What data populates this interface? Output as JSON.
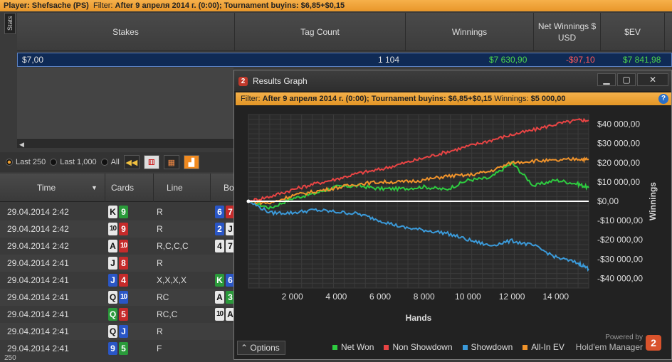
{
  "topbar": {
    "player_label": "Player:",
    "player": "Shefsache (PS)",
    "filter_label": "Filter:",
    "filter": "After 9 апреля 2014 г. (0:00); Tournament buyins: $6,85+$0,15"
  },
  "stats": {
    "tab": "Stats",
    "headers": [
      "Stakes",
      "Tag Count",
      "Winnings",
      "Net Winnings $ USD",
      "$EV"
    ],
    "row": {
      "stakes": "$7,00",
      "count": "1 104",
      "winnings": "$7 630,90",
      "net": "-$97,10",
      "ev": "$7 841,98"
    }
  },
  "filterbar": {
    "opt1": "Last 250",
    "opt2": "Last 1,000",
    "opt3": "All"
  },
  "hands": {
    "headers": [
      "Time",
      "Cards",
      "Line",
      "Bo"
    ],
    "rows": [
      {
        "time": "29.04.2014 2:42",
        "c1": "K",
        "s1": "s",
        "c2": "9",
        "s2": "c",
        "line": "R",
        "b": [
          [
            "6",
            "d"
          ],
          [
            "7",
            "h"
          ]
        ]
      },
      {
        "time": "29.04.2014 2:42",
        "c1": "10",
        "s1": "s",
        "c2": "9",
        "s2": "h",
        "line": "R",
        "b": [
          [
            "2",
            "d"
          ],
          [
            "J",
            "s"
          ]
        ]
      },
      {
        "time": "29.04.2014 2:42",
        "c1": "A",
        "s1": "s",
        "c2": "10",
        "s2": "h",
        "line": "R,C,C,C",
        "b": [
          [
            "4",
            "s"
          ],
          [
            "7",
            "s"
          ]
        ]
      },
      {
        "time": "29.04.2014 2:41",
        "c1": "J",
        "s1": "s",
        "c2": "8",
        "s2": "h",
        "line": "R",
        "b": []
      },
      {
        "time": "29.04.2014 2:41",
        "c1": "J",
        "s1": "d",
        "c2": "4",
        "s2": "h",
        "line": "X,X,X,X",
        "b": [
          [
            "K",
            "c"
          ],
          [
            "6",
            "d"
          ]
        ]
      },
      {
        "time": "29.04.2014 2:41",
        "c1": "Q",
        "s1": "s",
        "c2": "10",
        "s2": "d",
        "line": "RC",
        "b": [
          [
            "A",
            "s"
          ],
          [
            "3",
            "c"
          ]
        ]
      },
      {
        "time": "29.04.2014 2:41",
        "c1": "Q",
        "s1": "c",
        "c2": "5",
        "s2": "h",
        "line": "RC,C",
        "b": [
          [
            "10",
            "s"
          ],
          [
            "A",
            "s"
          ]
        ]
      },
      {
        "time": "29.04.2014 2:41",
        "c1": "Q",
        "s1": "s",
        "c2": "J",
        "s2": "d",
        "line": "R",
        "b": []
      },
      {
        "time": "29.04.2014 2:41",
        "c1": "9",
        "s1": "d",
        "c2": "5",
        "s2": "c",
        "line": "F",
        "b": []
      }
    ],
    "footer": "250"
  },
  "window": {
    "title": "Results Graph",
    "filter_label": "Filter:",
    "filter": "After 9 апреля 2014 г. (0:00); Tournament buyins: $6,85+$0,15",
    "winnings_label": "Winnings:",
    "winnings": "$5 000,00",
    "options": "Options",
    "powered": "Powered by",
    "brand": "Hold'em Manager"
  },
  "chart_data": {
    "type": "line",
    "xlabel": "Hands",
    "ylabel": "Winnings",
    "xlim": [
      0,
      15500
    ],
    "ylim": [
      -45000,
      45000
    ],
    "xticks": [
      2000,
      4000,
      6000,
      8000,
      10000,
      12000,
      14000
    ],
    "xtick_labels": [
      "2 000",
      "4 000",
      "6 000",
      "8 000",
      "10 000",
      "12 000",
      "14 000"
    ],
    "yticks": [
      40000,
      30000,
      20000,
      10000,
      0,
      -10000,
      -20000,
      -30000,
      -40000
    ],
    "ytick_labels": [
      "$40 000,00",
      "$30 000,00",
      "$20 000,00",
      "$10 000,00",
      "$0,00",
      "-$10 000,00",
      "-$20 000,00",
      "-$30 000,00",
      "-$40 000,00"
    ],
    "x": [
      0,
      1000,
      2000,
      3000,
      4000,
      5000,
      6000,
      7000,
      8000,
      9000,
      10000,
      11000,
      12000,
      13000,
      14000,
      15000,
      15500
    ],
    "series": [
      {
        "name": "Net Won",
        "color": "#2ecc40",
        "values": [
          0,
          -3500,
          1500,
          4000,
          7500,
          8000,
          6500,
          6500,
          7500,
          6000,
          11000,
          12000,
          20000,
          8000,
          11000,
          9000,
          7000
        ]
      },
      {
        "name": "Non Showdown",
        "color": "#e84444",
        "values": [
          0,
          2500,
          6000,
          9000,
          11500,
          14500,
          16500,
          19500,
          22500,
          25500,
          28500,
          31500,
          34500,
          37000,
          40000,
          42000,
          42000
        ]
      },
      {
        "name": "Showdown",
        "color": "#3b9ad9",
        "values": [
          0,
          -6000,
          -6000,
          -4500,
          -5500,
          -6500,
          -10000,
          -13500,
          -15000,
          -16500,
          -20000,
          -23000,
          -20500,
          -23000,
          -29000,
          -32000,
          -35000
        ]
      },
      {
        "name": "All-In EV",
        "color": "#f0932b",
        "values": [
          0,
          -1000,
          3000,
          5000,
          7000,
          9000,
          10000,
          10000,
          11000,
          13000,
          13500,
          15500,
          20000,
          21000,
          21000,
          22000,
          21500
        ]
      }
    ]
  }
}
